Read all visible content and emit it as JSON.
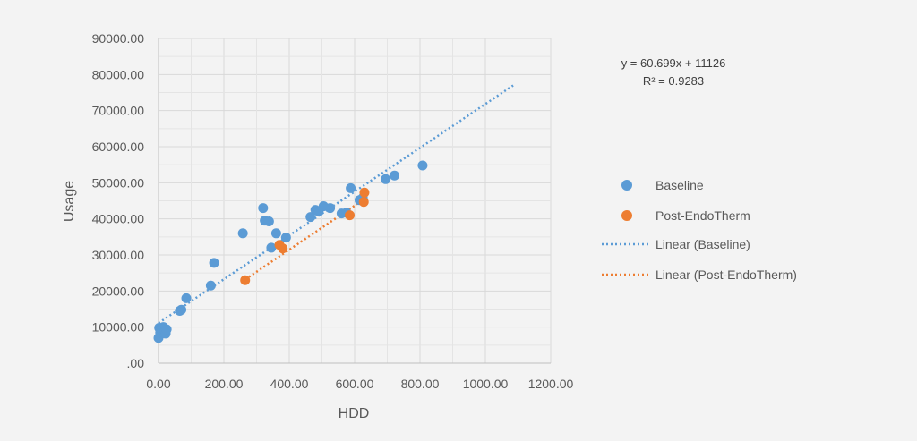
{
  "chart_data": {
    "type": "scatter",
    "xlabel": "HDD",
    "ylabel": "Usage",
    "xlim": [
      0,
      1200
    ],
    "ylim": [
      0,
      90000
    ],
    "x_ticks": [
      "0.00",
      "200.00",
      "400.00",
      "600.00",
      "800.00",
      "1000.00",
      "1200.00"
    ],
    "y_ticks": [
      ".00",
      "10000.00",
      "20000.00",
      "30000.00",
      "40000.00",
      "50000.00",
      "60000.00",
      "70000.00",
      "80000.00",
      "90000.00"
    ],
    "grid": true,
    "legend_position": "right",
    "equation": "y = 60.699x + 11126",
    "r_squared": "R² = 0.9283",
    "series": [
      {
        "name": "Baseline",
        "color": "#5b9bd5",
        "points": [
          [
            0,
            7000
          ],
          [
            2,
            9800
          ],
          [
            5,
            8500
          ],
          [
            8,
            9300
          ],
          [
            12,
            8800
          ],
          [
            15,
            10000
          ],
          [
            18,
            8300
          ],
          [
            20,
            9000
          ],
          [
            22,
            8200
          ],
          [
            25,
            9400
          ],
          [
            65,
            14500
          ],
          [
            70,
            14800
          ],
          [
            85,
            18000
          ],
          [
            160,
            21500
          ],
          [
            170,
            27800
          ],
          [
            258,
            36000
          ],
          [
            320,
            43000
          ],
          [
            325,
            39500
          ],
          [
            338,
            39300
          ],
          [
            345,
            32000
          ],
          [
            360,
            36000
          ],
          [
            390,
            34800
          ],
          [
            465,
            40500
          ],
          [
            480,
            42500
          ],
          [
            490,
            42000
          ],
          [
            505,
            43500
          ],
          [
            525,
            43000
          ],
          [
            560,
            41500
          ],
          [
            575,
            41700
          ],
          [
            588,
            48500
          ],
          [
            615,
            45200
          ],
          [
            625,
            45800
          ],
          [
            695,
            51000
          ],
          [
            722,
            52000
          ],
          [
            808,
            54800
          ]
        ]
      },
      {
        "name": "Post-EndoTherm",
        "color": "#ed7d31",
        "points": [
          [
            265,
            23000
          ],
          [
            370,
            32800
          ],
          [
            380,
            31800
          ],
          [
            585,
            41000
          ],
          [
            628,
            44700
          ],
          [
            630,
            47300
          ]
        ]
      }
    ],
    "trendlines": [
      {
        "name": "Linear (Baseline)",
        "color": "#5b9bd5",
        "x": [
          0,
          1085
        ],
        "y": [
          11126,
          76984
        ]
      },
      {
        "name": "Linear (Post-EndoTherm)",
        "color": "#ed7d31",
        "x": [
          265,
          630
        ],
        "y": [
          23200,
          45500
        ]
      }
    ]
  }
}
